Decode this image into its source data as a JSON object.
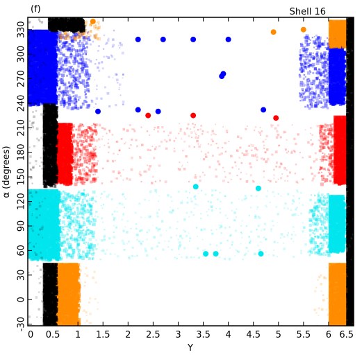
{
  "chart_data": {
    "type": "scatter",
    "panel_label": "(f)",
    "annotation": "Shell 16",
    "xlabel": "Y",
    "ylabel": "α (degrees)",
    "xlim": [
      0,
      6.5
    ],
    "ylim": [
      -32,
      345
    ],
    "x_ticks": [
      "0",
      "0.5",
      "1",
      "1.5",
      "2",
      "2.5",
      "3",
      "3.5",
      "4",
      "4.5",
      "5",
      "5.5",
      "6",
      "6.5"
    ],
    "y_ticks": [
      "-30",
      "0",
      "30",
      "60",
      "90",
      "120",
      "150",
      "180",
      "210",
      "240",
      "270",
      "300",
      "330"
    ],
    "grid": false,
    "legend": "none",
    "series": [
      {
        "color": "#0000ff",
        "regions": [
          {
            "x": [
              0.0,
              0.55
            ],
            "y": [
              240,
              330
            ],
            "density": "solid"
          },
          {
            "x": [
              0.55,
              1.2
            ],
            "y": [
              235,
              330
            ],
            "density": "dense"
          },
          {
            "x": [
              1.2,
              1.9
            ],
            "y": [
              235,
              330
            ],
            "density": "sparse"
          },
          {
            "x": [
              5.4,
              6.0
            ],
            "y": [
              235,
              325
            ],
            "density": "dense"
          },
          {
            "x": [
              6.0,
              6.3
            ],
            "y": [
              240,
              320
            ],
            "density": "solid"
          }
        ],
        "points": [
          [
            3.87,
            273
          ],
          [
            3.9,
            276
          ],
          [
            2.2,
            318
          ],
          [
            2.7,
            318
          ],
          [
            3.3,
            318
          ],
          [
            4.0,
            318
          ],
          [
            4.7,
            232
          ],
          [
            2.2,
            232
          ],
          [
            2.6,
            230
          ],
          [
            1.4,
            230
          ]
        ]
      },
      {
        "color": "#ff0000",
        "regions": [
          {
            "x": [
              0.5,
              0.85
            ],
            "y": [
              143,
              216
            ],
            "density": "solid"
          },
          {
            "x": [
              0.85,
              1.35
            ],
            "y": [
              143,
              216
            ],
            "density": "dense"
          },
          {
            "x": [
              1.35,
              5.8
            ],
            "y": [
              143,
              216
            ],
            "density": "sparse"
          },
          {
            "x": [
              5.8,
              6.1
            ],
            "y": [
              143,
              216
            ],
            "density": "dense"
          },
          {
            "x": [
              6.1,
              6.4
            ],
            "y": [
              143,
              225
            ],
            "density": "solid"
          }
        ],
        "points": [
          [
            4.95,
            222
          ],
          [
            2.4,
            225
          ],
          [
            3.3,
            225
          ]
        ]
      },
      {
        "color": "#00e5ee",
        "regions": [
          {
            "x": [
              0.0,
              0.6
            ],
            "y": [
              50,
              135
            ],
            "density": "solid"
          },
          {
            "x": [
              0.6,
              1.3
            ],
            "y": [
              50,
              135
            ],
            "density": "dense"
          },
          {
            "x": [
              1.3,
              5.6
            ],
            "y": [
              50,
              135
            ],
            "density": "sparse"
          },
          {
            "x": [
              5.6,
              6.0
            ],
            "y": [
              55,
              132
            ],
            "density": "dense"
          },
          {
            "x": [
              6.0,
              6.3
            ],
            "y": [
              60,
              128
            ],
            "density": "solid"
          }
        ],
        "points": [
          [
            3.55,
            56
          ],
          [
            3.75,
            56
          ],
          [
            4.65,
            56
          ],
          [
            4.6,
            136
          ],
          [
            3.35,
            138
          ]
        ]
      },
      {
        "color": "#ff8c00",
        "regions": [
          {
            "x": [
              0.5,
              1.0
            ],
            "y": [
              -32,
              45
            ],
            "density": "solid"
          },
          {
            "x": [
              1.0,
              1.4
            ],
            "y": [
              -32,
              45
            ],
            "density": "sparse"
          },
          {
            "x": [
              6.0,
              6.5
            ],
            "y": [
              -32,
              45
            ],
            "density": "solid"
          },
          {
            "x": [
              5.7,
              6.0
            ],
            "y": [
              -32,
              45
            ],
            "density": "sparse"
          },
          {
            "x": [
              0.6,
              1.4
            ],
            "y": [
              320,
              342
            ],
            "density": "dense"
          },
          {
            "x": [
              6.0,
              6.5
            ],
            "y": [
              310,
              342
            ],
            "density": "solid"
          }
        ],
        "points": [
          [
            4.9,
            327
          ],
          [
            5.5,
            330
          ],
          [
            1.3,
            340
          ]
        ]
      },
      {
        "color": "#000000",
        "regions": [
          {
            "x": [
              0.0,
              0.35
            ],
            "y": [
              -32,
              345
            ],
            "density": "sparse"
          },
          {
            "x": [
              0.3,
              0.55
            ],
            "y": [
              -32,
              45
            ],
            "density": "solid"
          },
          {
            "x": [
              0.3,
              0.55
            ],
            "y": [
              140,
              240
            ],
            "density": "solid"
          },
          {
            "x": [
              0.4,
              1.1
            ],
            "y": [
              330,
              345
            ],
            "density": "solid"
          },
          {
            "x": [
              6.35,
              6.5
            ],
            "y": [
              -32,
              345
            ],
            "density": "solid"
          }
        ],
        "points": []
      }
    ]
  }
}
